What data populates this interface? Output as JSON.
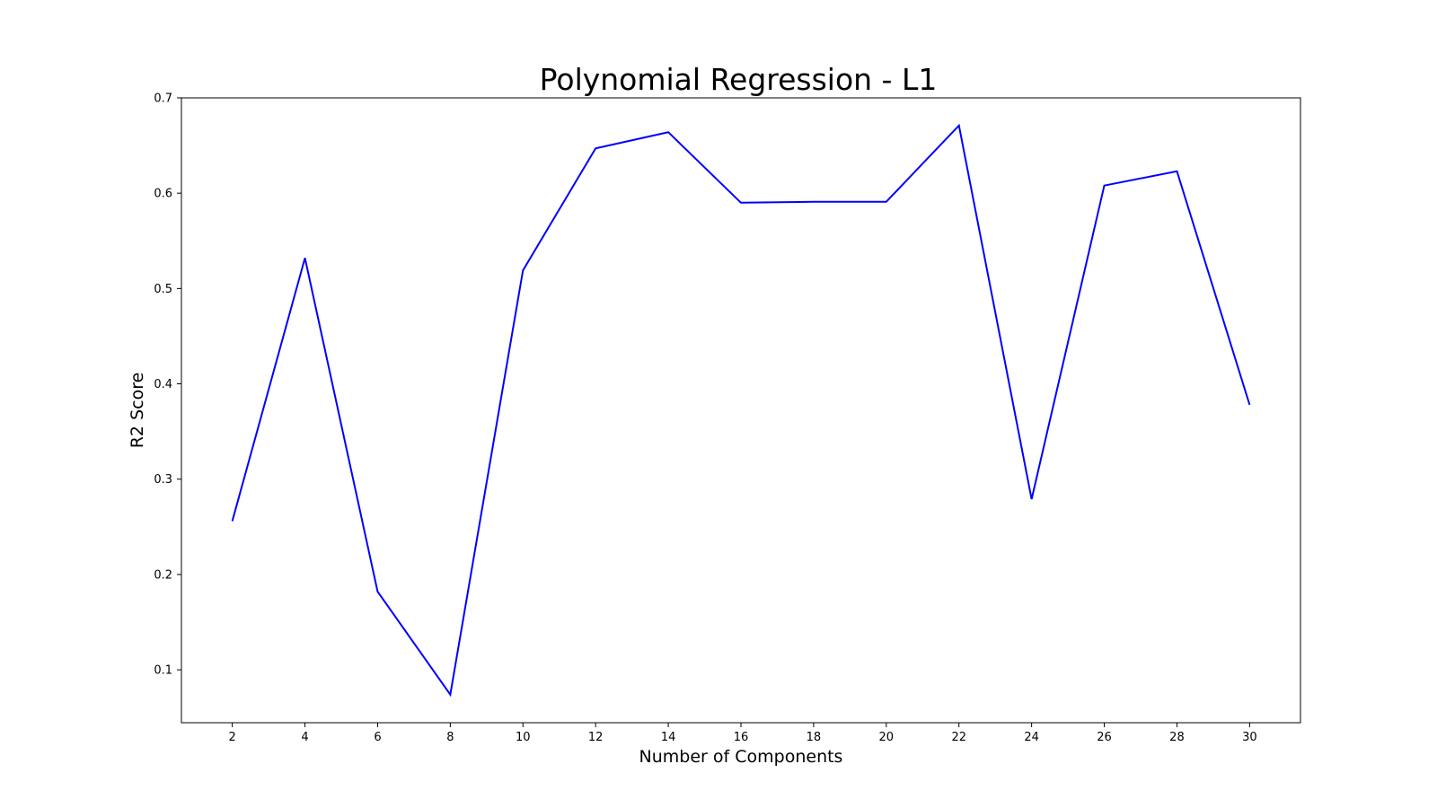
{
  "chart_data": {
    "type": "line",
    "title": "Polynomial Regression - L1",
    "xlabel": "Number of Components",
    "ylabel": "R2 Score",
    "x": [
      2,
      4,
      6,
      8,
      10,
      12,
      14,
      16,
      18,
      20,
      22,
      24,
      26,
      28,
      30
    ],
    "series": [
      {
        "color": "#0000ff",
        "values": [
          0.256,
          0.532,
          0.182,
          0.074,
          0.519,
          0.647,
          0.664,
          0.59,
          0.591,
          0.591,
          0.671,
          0.279,
          0.608,
          0.623,
          0.378
        ]
      }
    ],
    "xticks": [
      "2",
      "4",
      "6",
      "8",
      "10",
      "12",
      "14",
      "16",
      "18",
      "20",
      "22",
      "24",
      "26",
      "28",
      "30"
    ],
    "yticks": [
      "0.1",
      "0.2",
      "0.3",
      "0.4",
      "0.5",
      "0.6",
      "0.7"
    ],
    "xlim": [
      0.6,
      31.4
    ],
    "ylim": [
      0.0445,
      0.7
    ],
    "grid": false,
    "legend": "none"
  }
}
